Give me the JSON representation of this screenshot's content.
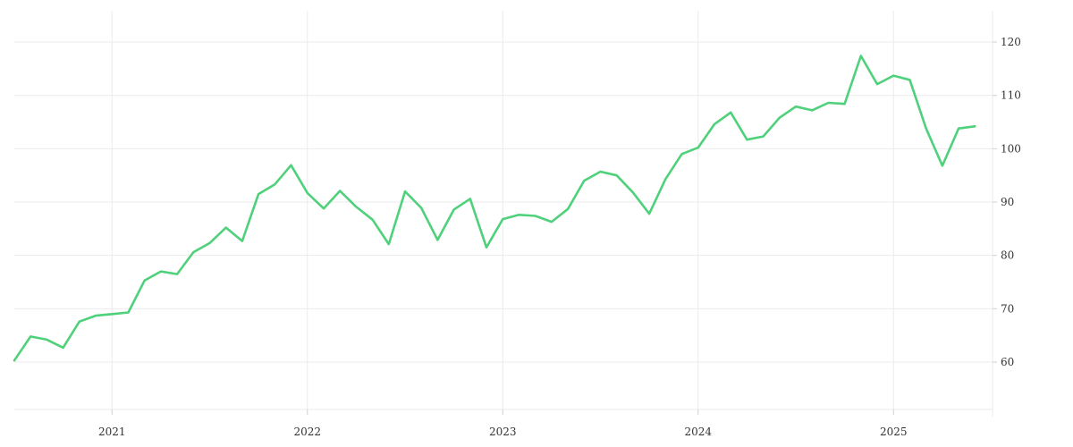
{
  "chart_data": {
    "type": "line",
    "title": "",
    "xlabel": "",
    "ylabel": "",
    "grid": true,
    "legend": "none",
    "y_axis_side": "right",
    "x_ticks": [
      "2021",
      "2022",
      "2023",
      "2024",
      "2025"
    ],
    "y_ticks": [
      "60",
      "70",
      "80",
      "90",
      "100",
      "110",
      "120"
    ],
    "xlim": [
      "2020-07-01",
      "2025-07-01"
    ],
    "ylim": [
      50,
      125
    ],
    "colors": {
      "line": "#4fd17b",
      "grid": "#ebebeb",
      "text": "#333333"
    },
    "series": [
      {
        "x": [
          "2020-07",
          "2020-08",
          "2020-09",
          "2020-10",
          "2020-11",
          "2020-12",
          "2021-01",
          "2021-02",
          "2021-03",
          "2021-04",
          "2021-05",
          "2021-06",
          "2021-07",
          "2021-08",
          "2021-09",
          "2021-10",
          "2021-11",
          "2021-12",
          "2022-01",
          "2022-02",
          "2022-03",
          "2022-04",
          "2022-05",
          "2022-06",
          "2022-07",
          "2022-08",
          "2022-09",
          "2022-10",
          "2022-11",
          "2022-12",
          "2023-01",
          "2023-02",
          "2023-03",
          "2023-04",
          "2023-05",
          "2023-06",
          "2023-07",
          "2023-08",
          "2023-09",
          "2023-10",
          "2023-11",
          "2023-12",
          "2024-01",
          "2024-02",
          "2024-03",
          "2024-04",
          "2024-05",
          "2024-06",
          "2024-07",
          "2024-08",
          "2024-09",
          "2024-10",
          "2024-11",
          "2024-12",
          "2025-01",
          "2025-02",
          "2025-03",
          "2025-04",
          "2025-05",
          "2025-06"
        ],
        "values": [
          60.3,
          64.8,
          64.2,
          62.7,
          67.6,
          68.7,
          69.0,
          69.3,
          75.3,
          77.0,
          76.5,
          80.6,
          82.3,
          85.2,
          82.7,
          91.5,
          93.3,
          96.9,
          91.7,
          88.8,
          92.1,
          89.1,
          86.7,
          82.1,
          92.0,
          88.9,
          82.9,
          88.6,
          90.6,
          81.5,
          86.8,
          87.6,
          87.4,
          86.3,
          88.7,
          94.0,
          95.7,
          95.0,
          91.8,
          87.8,
          94.3,
          99.0,
          100.2,
          104.6,
          106.8,
          101.7,
          102.3,
          105.8,
          107.9,
          107.2,
          108.6,
          108.4,
          117.4,
          112.1,
          113.7,
          112.9,
          103.8,
          96.8,
          103.8,
          104.2
        ]
      }
    ]
  }
}
